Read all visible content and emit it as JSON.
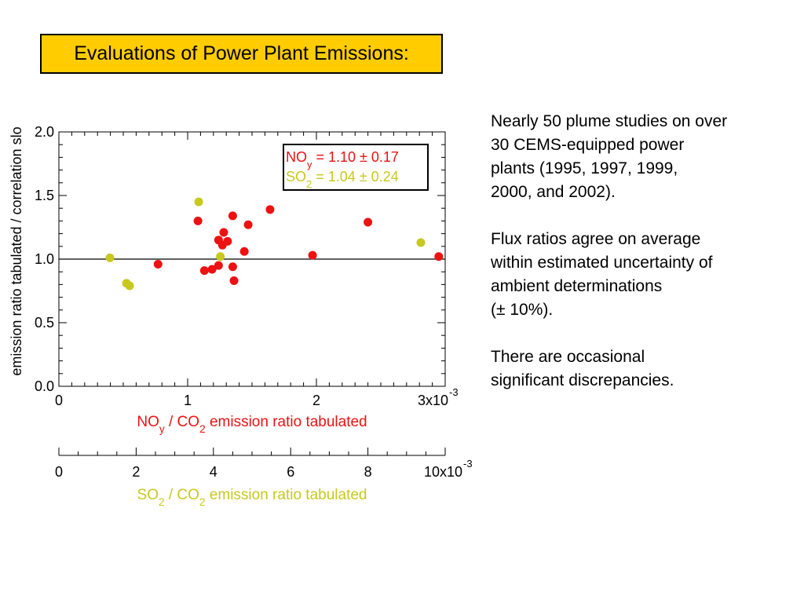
{
  "title": "Evaluations of Power Plant Emissions:",
  "colors": {
    "title_bg": "#ffcc00",
    "noy": "#ee1111",
    "so2": "#c8c81e",
    "text": "#000000"
  },
  "bullets": [
    {
      "lines": [
        "Nearly 50 plume studies on over",
        "30 CEMS-equipped power",
        "plants (1995, 1997, 1999,",
        "2000, and 2002)."
      ]
    },
    {
      "lines": [
        "Flux ratios agree on average",
        "within estimated uncertainty of",
        "ambient determinations",
        "(± 10%)."
      ]
    },
    {
      "lines": [
        "There are occasional",
        "significant discrepancies."
      ]
    }
  ],
  "chart_data": {
    "type": "scatter",
    "ylabel": "emission ratio tabulated / correlation slo",
    "ylim": [
      0,
      2.0
    ],
    "yticks": [
      "0.0",
      "0.5",
      "1.0",
      "1.5",
      "2.0"
    ],
    "reference_line_y": 1.0,
    "x_axis_noy": {
      "label_parts": [
        "NO",
        "y",
        " / CO",
        "2",
        " emission ratio tabulated"
      ],
      "lim": [
        0,
        3
      ],
      "ticks": [
        "0",
        "1",
        "2",
        "3x10"
      ],
      "exponent": "-3"
    },
    "x_axis_so2": {
      "label_parts": [
        "SO",
        "2",
        " / CO",
        "2",
        " emission ratio tabulated"
      ],
      "lim": [
        0,
        10
      ],
      "ticks": [
        "0",
        "2",
        "4",
        "6",
        "8",
        "10x10"
      ],
      "exponent": "-3"
    },
    "legend": {
      "placement": "top-right",
      "entries": [
        {
          "parts": [
            "NO",
            "y",
            " = 1.10 ± 0.17"
          ]
        },
        {
          "parts": [
            "SO",
            "2",
            " = 1.04 ± 0.24"
          ]
        }
      ]
    },
    "series": [
      {
        "name": "NOy",
        "x_axis": "noy",
        "points": [
          {
            "x": 0.77,
            "y": 0.96
          },
          {
            "x": 1.08,
            "y": 1.3
          },
          {
            "x": 1.13,
            "y": 0.91
          },
          {
            "x": 1.19,
            "y": 0.92
          },
          {
            "x": 1.24,
            "y": 1.15
          },
          {
            "x": 1.24,
            "y": 0.95
          },
          {
            "x": 1.27,
            "y": 1.11
          },
          {
            "x": 1.28,
            "y": 1.21
          },
          {
            "x": 1.31,
            "y": 1.14
          },
          {
            "x": 1.35,
            "y": 1.34
          },
          {
            "x": 1.35,
            "y": 0.94
          },
          {
            "x": 1.36,
            "y": 0.83
          },
          {
            "x": 1.44,
            "y": 1.06
          },
          {
            "x": 1.47,
            "y": 1.27
          },
          {
            "x": 1.64,
            "y": 1.39
          },
          {
            "x": 1.97,
            "y": 1.03
          },
          {
            "x": 2.4,
            "y": 1.29
          },
          {
            "x": 2.95,
            "y": 1.02
          }
        ]
      },
      {
        "name": "SO2",
        "x_axis": "so2",
        "points": [
          {
            "x": 1.32,
            "y": 1.01
          },
          {
            "x": 1.75,
            "y": 0.81
          },
          {
            "x": 1.83,
            "y": 0.79
          },
          {
            "x": 3.62,
            "y": 1.45
          },
          {
            "x": 4.18,
            "y": 1.02
          },
          {
            "x": 9.37,
            "y": 1.13
          }
        ]
      }
    ]
  }
}
